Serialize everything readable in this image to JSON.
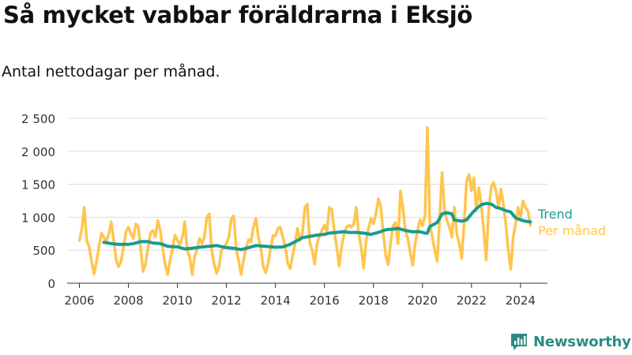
{
  "title": "Så mycket vabbar föräldrarna i Eksjö",
  "subtitle": "Antal nettodagar per månad.",
  "brand": "Newsworthy",
  "colors": {
    "monthly": "#ffc54e",
    "trend": "#1a9a90",
    "axis": "#333333",
    "grid": "#dddddd",
    "brand": "#2a8c85"
  },
  "chart_data": {
    "type": "line",
    "title": "Så mycket vabbar föräldrarna i Eksjö",
    "subtitle": "Antal nettodagar per månad.",
    "xlabel": "",
    "ylabel": "",
    "xlim": [
      2005.5,
      2025.1
    ],
    "ylim": [
      0,
      2500
    ],
    "x_ticks": [
      2006,
      2008,
      2010,
      2012,
      2014,
      2016,
      2018,
      2020,
      2022,
      2024
    ],
    "y_ticks": [
      0,
      500,
      1000,
      1500,
      2000,
      2500
    ],
    "y_tick_labels": [
      "0",
      "500",
      "1 000",
      "1 500",
      "2 000",
      "2 500"
    ],
    "grid": "horizontal",
    "legend": "direct labels at right end of lines",
    "series": [
      {
        "name": "Per månad",
        "color": "#ffc54e",
        "points": [
          [
            2006.0,
            650
          ],
          [
            2006.1,
            820
          ],
          [
            2006.2,
            1150
          ],
          [
            2006.3,
            650
          ],
          [
            2006.4,
            550
          ],
          [
            2006.5,
            320
          ],
          [
            2006.6,
            140
          ],
          [
            2006.7,
            330
          ],
          [
            2006.8,
            550
          ],
          [
            2006.9,
            760
          ],
          [
            2007.0,
            700
          ],
          [
            2007.1,
            620
          ],
          [
            2007.2,
            750
          ],
          [
            2007.3,
            930
          ],
          [
            2007.4,
            650
          ],
          [
            2007.5,
            350
          ],
          [
            2007.6,
            250
          ],
          [
            2007.7,
            330
          ],
          [
            2007.8,
            540
          ],
          [
            2007.9,
            780
          ],
          [
            2008.0,
            850
          ],
          [
            2008.1,
            750
          ],
          [
            2008.2,
            680
          ],
          [
            2008.3,
            900
          ],
          [
            2008.4,
            860
          ],
          [
            2008.5,
            520
          ],
          [
            2008.6,
            180
          ],
          [
            2008.7,
            300
          ],
          [
            2008.8,
            540
          ],
          [
            2008.9,
            760
          ],
          [
            2009.0,
            800
          ],
          [
            2009.1,
            700
          ],
          [
            2009.2,
            950
          ],
          [
            2009.3,
            800
          ],
          [
            2009.4,
            520
          ],
          [
            2009.5,
            280
          ],
          [
            2009.6,
            130
          ],
          [
            2009.7,
            350
          ],
          [
            2009.8,
            520
          ],
          [
            2009.9,
            730
          ],
          [
            2010.0,
            650
          ],
          [
            2010.1,
            580
          ],
          [
            2010.2,
            700
          ],
          [
            2010.3,
            930
          ],
          [
            2010.4,
            500
          ],
          [
            2010.5,
            400
          ],
          [
            2010.6,
            130
          ],
          [
            2010.7,
            400
          ],
          [
            2010.8,
            520
          ],
          [
            2010.9,
            680
          ],
          [
            2011.0,
            600
          ],
          [
            2011.1,
            700
          ],
          [
            2011.2,
            1000
          ],
          [
            2011.3,
            1050
          ],
          [
            2011.4,
            500
          ],
          [
            2011.5,
            290
          ],
          [
            2011.6,
            150
          ],
          [
            2011.7,
            250
          ],
          [
            2011.8,
            500
          ],
          [
            2011.9,
            540
          ],
          [
            2012.0,
            600
          ],
          [
            2012.1,
            700
          ],
          [
            2012.2,
            980
          ],
          [
            2012.3,
            1020
          ],
          [
            2012.4,
            520
          ],
          [
            2012.5,
            340
          ],
          [
            2012.6,
            130
          ],
          [
            2012.7,
            350
          ],
          [
            2012.8,
            540
          ],
          [
            2012.9,
            660
          ],
          [
            2013.0,
            630
          ],
          [
            2013.1,
            850
          ],
          [
            2013.2,
            980
          ],
          [
            2013.3,
            700
          ],
          [
            2013.4,
            540
          ],
          [
            2013.5,
            260
          ],
          [
            2013.6,
            160
          ],
          [
            2013.7,
            300
          ],
          [
            2013.8,
            520
          ],
          [
            2013.9,
            720
          ],
          [
            2014.0,
            720
          ],
          [
            2014.1,
            830
          ],
          [
            2014.2,
            850
          ],
          [
            2014.3,
            700
          ],
          [
            2014.4,
            550
          ],
          [
            2014.5,
            300
          ],
          [
            2014.6,
            220
          ],
          [
            2014.7,
            420
          ],
          [
            2014.8,
            600
          ],
          [
            2014.9,
            830
          ],
          [
            2015.0,
            650
          ],
          [
            2015.1,
            750
          ],
          [
            2015.2,
            1150
          ],
          [
            2015.3,
            1200
          ],
          [
            2015.4,
            620
          ],
          [
            2015.5,
            500
          ],
          [
            2015.6,
            290
          ],
          [
            2015.7,
            600
          ],
          [
            2015.8,
            720
          ],
          [
            2015.9,
            800
          ],
          [
            2016.0,
            880
          ],
          [
            2016.1,
            780
          ],
          [
            2016.2,
            1150
          ],
          [
            2016.3,
            1120
          ],
          [
            2016.4,
            800
          ],
          [
            2016.5,
            550
          ],
          [
            2016.6,
            260
          ],
          [
            2016.7,
            550
          ],
          [
            2016.8,
            740
          ],
          [
            2016.9,
            850
          ],
          [
            2017.0,
            880
          ],
          [
            2017.1,
            850
          ],
          [
            2017.2,
            900
          ],
          [
            2017.3,
            1150
          ],
          [
            2017.4,
            750
          ],
          [
            2017.5,
            550
          ],
          [
            2017.6,
            230
          ],
          [
            2017.7,
            640
          ],
          [
            2017.8,
            840
          ],
          [
            2017.9,
            980
          ],
          [
            2018.0,
            900
          ],
          [
            2018.1,
            1050
          ],
          [
            2018.2,
            1280
          ],
          [
            2018.3,
            1150
          ],
          [
            2018.4,
            750
          ],
          [
            2018.5,
            420
          ],
          [
            2018.6,
            280
          ],
          [
            2018.7,
            620
          ],
          [
            2018.8,
            870
          ],
          [
            2018.9,
            920
          ],
          [
            2019.0,
            600
          ],
          [
            2019.1,
            1400
          ],
          [
            2019.2,
            1150
          ],
          [
            2019.3,
            800
          ],
          [
            2019.4,
            680
          ],
          [
            2019.5,
            460
          ],
          [
            2019.6,
            270
          ],
          [
            2019.7,
            600
          ],
          [
            2019.8,
            800
          ],
          [
            2019.9,
            960
          ],
          [
            2020.0,
            870
          ],
          [
            2020.1,
            1020
          ],
          [
            2020.2,
            2360
          ],
          [
            2020.3,
            900
          ],
          [
            2020.4,
            700
          ],
          [
            2020.5,
            500
          ],
          [
            2020.6,
            330
          ],
          [
            2020.7,
            980
          ],
          [
            2020.8,
            1680
          ],
          [
            2020.9,
            1100
          ],
          [
            2021.0,
            950
          ],
          [
            2021.1,
            850
          ],
          [
            2021.2,
            700
          ],
          [
            2021.3,
            1150
          ],
          [
            2021.4,
            750
          ],
          [
            2021.5,
            600
          ],
          [
            2021.6,
            380
          ],
          [
            2021.7,
            900
          ],
          [
            2021.8,
            1550
          ],
          [
            2021.9,
            1650
          ],
          [
            2022.0,
            1400
          ],
          [
            2022.1,
            1600
          ],
          [
            2022.2,
            1100
          ],
          [
            2022.3,
            1450
          ],
          [
            2022.4,
            1200
          ],
          [
            2022.5,
            800
          ],
          [
            2022.6,
            350
          ],
          [
            2022.7,
            1100
          ],
          [
            2022.8,
            1450
          ],
          [
            2022.9,
            1530
          ],
          [
            2023.0,
            1400
          ],
          [
            2023.1,
            1150
          ],
          [
            2023.2,
            1430
          ],
          [
            2023.3,
            1200
          ],
          [
            2023.4,
            900
          ],
          [
            2023.5,
            500
          ],
          [
            2023.6,
            210
          ],
          [
            2023.7,
            700
          ],
          [
            2023.8,
            900
          ],
          [
            2023.9,
            1150
          ],
          [
            2024.0,
            1000
          ],
          [
            2024.1,
            1250
          ],
          [
            2024.2,
            1150
          ],
          [
            2024.3,
            1100
          ],
          [
            2024.4,
            880
          ]
        ]
      },
      {
        "name": "Trend",
        "color": "#1a9a90",
        "points": [
          [
            2007.0,
            620
          ],
          [
            2007.3,
            600
          ],
          [
            2007.6,
            590
          ],
          [
            2008.0,
            590
          ],
          [
            2008.2,
            600
          ],
          [
            2008.5,
            630
          ],
          [
            2008.8,
            630
          ],
          [
            2009.0,
            610
          ],
          [
            2009.3,
            600
          ],
          [
            2009.6,
            560
          ],
          [
            2010.0,
            550
          ],
          [
            2010.3,
            520
          ],
          [
            2010.6,
            530
          ],
          [
            2011.0,
            550
          ],
          [
            2011.3,
            560
          ],
          [
            2011.6,
            570
          ],
          [
            2012.0,
            540
          ],
          [
            2012.3,
            530
          ],
          [
            2012.6,
            510
          ],
          [
            2012.9,
            540
          ],
          [
            2013.2,
            570
          ],
          [
            2013.6,
            560
          ],
          [
            2014.0,
            545
          ],
          [
            2014.3,
            550
          ],
          [
            2014.6,
            590
          ],
          [
            2014.9,
            650
          ],
          [
            2015.1,
            690
          ],
          [
            2015.4,
            710
          ],
          [
            2015.7,
            730
          ],
          [
            2016.0,
            740
          ],
          [
            2016.2,
            760
          ],
          [
            2016.5,
            770
          ],
          [
            2016.8,
            780
          ],
          [
            2017.0,
            770
          ],
          [
            2017.3,
            770
          ],
          [
            2017.6,
            760
          ],
          [
            2017.9,
            740
          ],
          [
            2018.2,
            770
          ],
          [
            2018.5,
            810
          ],
          [
            2018.8,
            820
          ],
          [
            2019.0,
            830
          ],
          [
            2019.3,
            800
          ],
          [
            2019.6,
            780
          ],
          [
            2019.9,
            780
          ],
          [
            2020.1,
            760
          ],
          [
            2020.2,
            760
          ],
          [
            2020.3,
            860
          ],
          [
            2020.6,
            920
          ],
          [
            2020.8,
            1050
          ],
          [
            2021.0,
            1070
          ],
          [
            2021.2,
            1050
          ],
          [
            2021.3,
            960
          ],
          [
            2021.6,
            940
          ],
          [
            2021.8,
            960
          ],
          [
            2022.0,
            1050
          ],
          [
            2022.2,
            1130
          ],
          [
            2022.4,
            1190
          ],
          [
            2022.6,
            1210
          ],
          [
            2022.8,
            1200
          ],
          [
            2023.0,
            1150
          ],
          [
            2023.2,
            1130
          ],
          [
            2023.4,
            1100
          ],
          [
            2023.6,
            1080
          ],
          [
            2023.8,
            990
          ],
          [
            2024.0,
            960
          ],
          [
            2024.2,
            940
          ],
          [
            2024.4,
            930
          ]
        ]
      }
    ]
  }
}
